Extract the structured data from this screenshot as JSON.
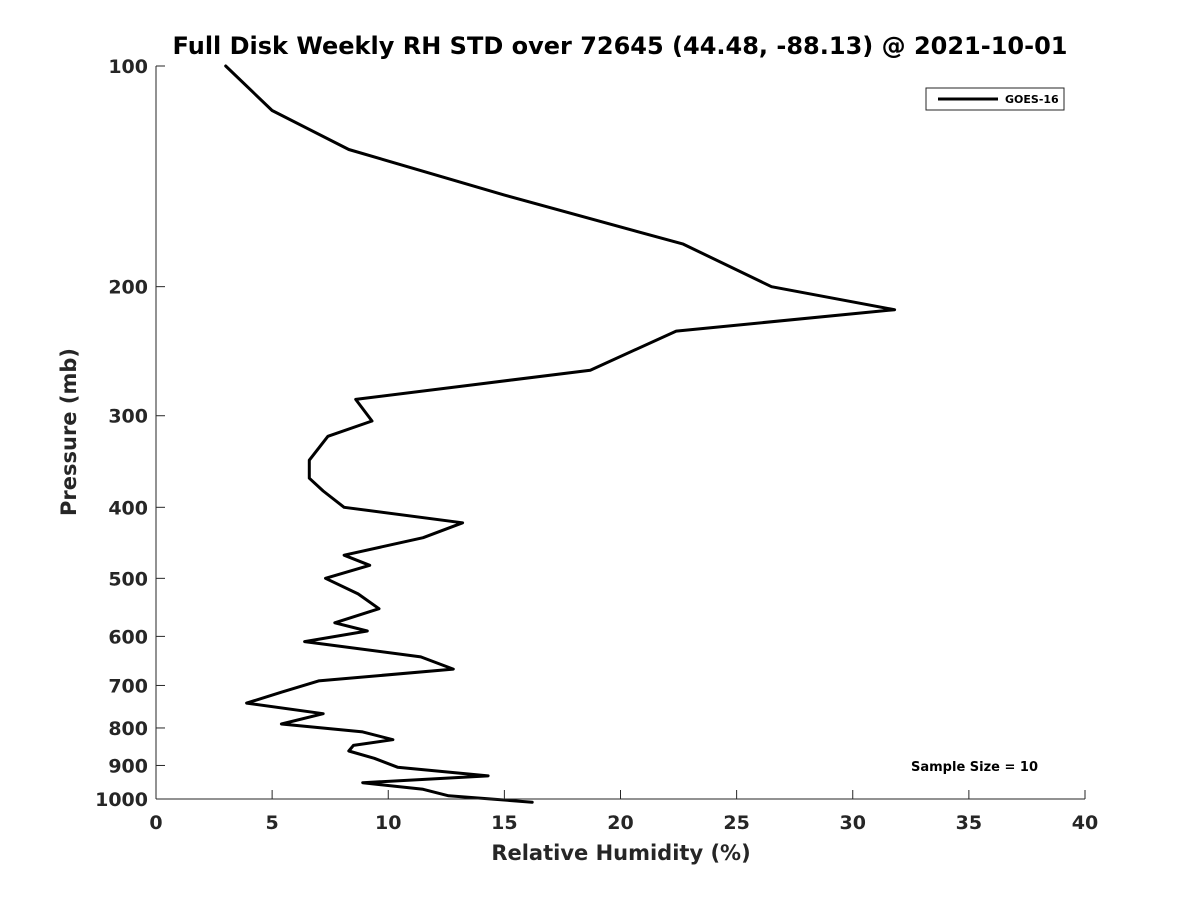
{
  "chart_data": {
    "type": "line",
    "title": "Full Disk Weekly RH STD over 72645 (44.48, -88.13) @ 2021-10-01",
    "xlabel": "Relative Humidity (%)",
    "ylabel": "Pressure (mb)",
    "xlim": [
      0,
      40
    ],
    "ylim": [
      100,
      1000
    ],
    "yscale": "log",
    "y_reversed": true,
    "xticks": [
      0,
      5,
      10,
      15,
      20,
      25,
      30,
      35,
      40
    ],
    "yticks": [
      100,
      200,
      300,
      400,
      500,
      600,
      700,
      800,
      900,
      1000
    ],
    "grid": false,
    "legend_position": "top-right",
    "annotation": "Sample Size = 10",
    "series": [
      {
        "name": "GOES-16",
        "color": "#000000",
        "x": [
          3.0,
          5.0,
          8.3,
          15.0,
          22.7,
          26.5,
          31.8,
          22.4,
          18.7,
          8.6,
          9.3,
          7.4,
          6.6,
          6.6,
          7.2,
          8.1,
          13.2,
          11.5,
          8.1,
          9.2,
          7.3,
          8.7,
          9.6,
          7.7,
          9.1,
          6.4,
          11.4,
          12.8,
          7.0,
          5.4,
          3.9,
          7.2,
          5.4,
          8.9,
          10.2,
          8.5,
          8.3,
          9.4,
          10.4,
          14.3,
          8.9,
          11.5,
          12.6,
          16.2
        ],
        "y": [
          100,
          115,
          130,
          150,
          175,
          200,
          215,
          230,
          260,
          285,
          305,
          320,
          345,
          365,
          380,
          400,
          420,
          440,
          465,
          480,
          500,
          525,
          550,
          575,
          590,
          610,
          640,
          665,
          690,
          715,
          740,
          765,
          790,
          810,
          830,
          845,
          860,
          880,
          905,
          930,
          950,
          970,
          990,
          1010
        ]
      }
    ]
  }
}
